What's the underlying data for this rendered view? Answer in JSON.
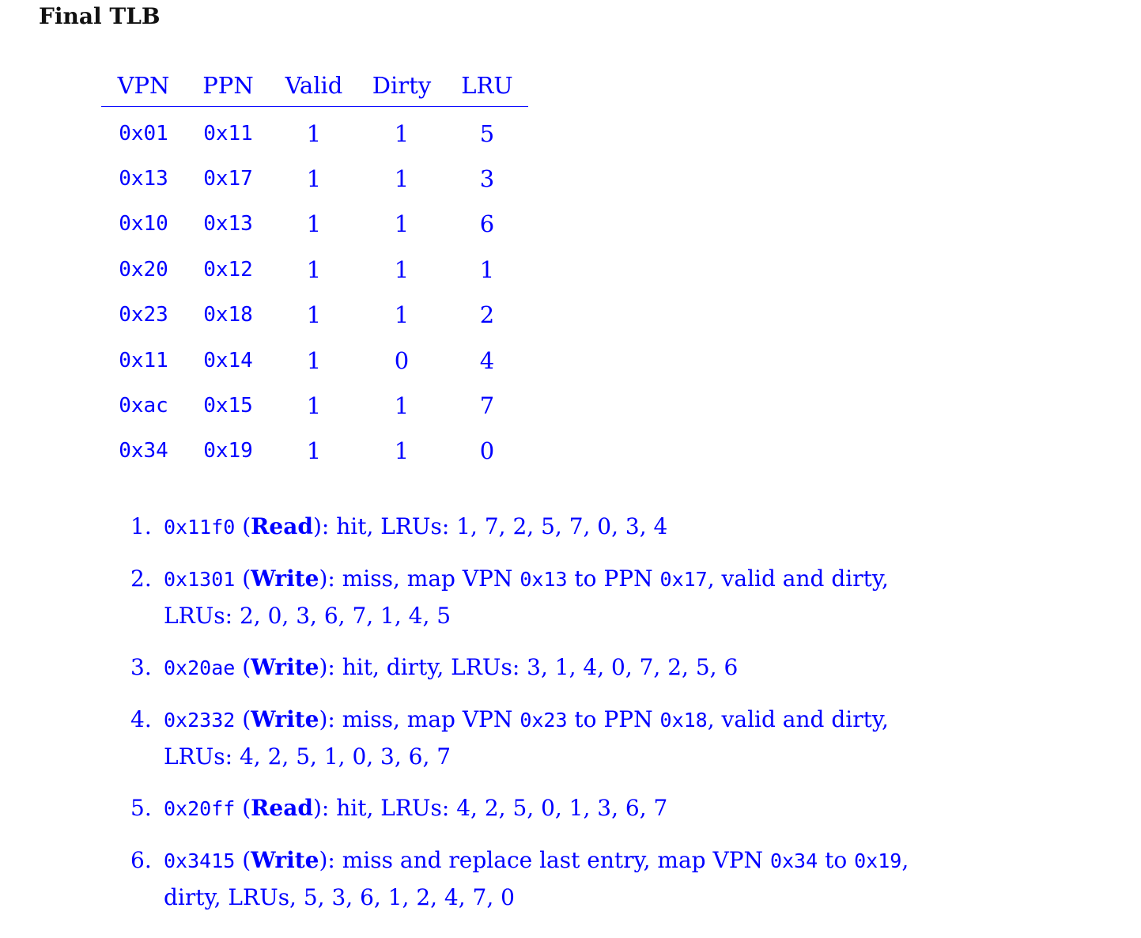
{
  "heading": "Final TLB",
  "table": {
    "headers": [
      "VPN",
      "PPN",
      "Valid",
      "Dirty",
      "LRU"
    ],
    "rows": [
      {
        "vpn": "0x01",
        "ppn": "0x11",
        "valid": "1",
        "dirty": "1",
        "lru": "5"
      },
      {
        "vpn": "0x13",
        "ppn": "0x17",
        "valid": "1",
        "dirty": "1",
        "lru": "3"
      },
      {
        "vpn": "0x10",
        "ppn": "0x13",
        "valid": "1",
        "dirty": "1",
        "lru": "6"
      },
      {
        "vpn": "0x20",
        "ppn": "0x12",
        "valid": "1",
        "dirty": "1",
        "lru": "1"
      },
      {
        "vpn": "0x23",
        "ppn": "0x18",
        "valid": "1",
        "dirty": "1",
        "lru": "2"
      },
      {
        "vpn": "0x11",
        "ppn": "0x14",
        "valid": "1",
        "dirty": "0",
        "lru": "4"
      },
      {
        "vpn": "0xac",
        "ppn": "0x15",
        "valid": "1",
        "dirty": "1",
        "lru": "7"
      },
      {
        "vpn": "0x34",
        "ppn": "0x19",
        "valid": "1",
        "dirty": "1",
        "lru": "0"
      }
    ]
  },
  "steps": [
    {
      "num": "1.",
      "addr": "0x11f0",
      "op": "Read",
      "text": "): hit, LRUs: 1, 7, 2, 5, 7, 0, 3, 4"
    },
    {
      "num": "2.",
      "addr": "0x1301",
      "op": "Write",
      "text_a": "): miss, map VPN ",
      "vpn": "0x13",
      "text_b": " to PPN ",
      "ppn": "0x17",
      "text_c": ", valid and dirty, LRUs: 2, 0, 3, 6, 7, 1, 4, 5"
    },
    {
      "num": "3.",
      "addr": "0x20ae",
      "op": "Write",
      "text": "): hit, dirty, LRUs: 3, 1, 4, 0, 7, 2, 5, 6"
    },
    {
      "num": "4.",
      "addr": "0x2332",
      "op": "Write",
      "text_a": "): miss, map VPN ",
      "vpn": "0x23",
      "text_b": " to PPN ",
      "ppn": "0x18",
      "text_c": ", valid and dirty, LRUs: 4, 2, 5, 1, 0, 3, 6, 7"
    },
    {
      "num": "5.",
      "addr": "0x20ff",
      "op": "Read",
      "text": "): hit, LRUs: 4, 2, 5, 0, 1, 3, 6, 7"
    },
    {
      "num": "6.",
      "addr": "0x3415",
      "op": "Write",
      "text_a": "): miss and replace last entry, map VPN ",
      "vpn": "0x34",
      "text_b": " to ",
      "ppn": "0x19",
      "text_c": ", dirty, LRUs, 5, 3, 6, 1, 2, 4, 7, 0"
    }
  ]
}
